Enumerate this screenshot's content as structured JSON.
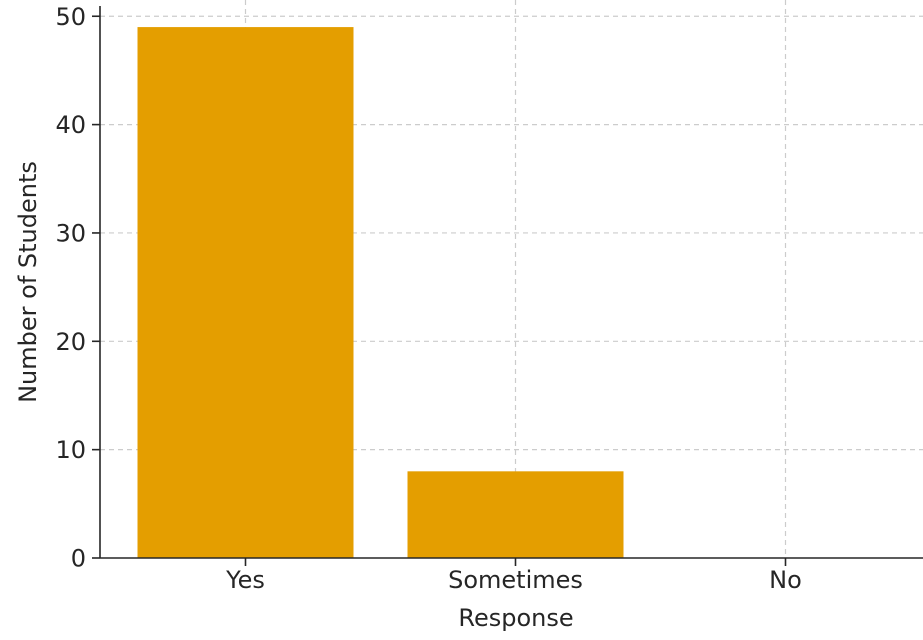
{
  "chart_data": {
    "type": "bar",
    "categories": [
      "Yes",
      "Sometimes",
      "No"
    ],
    "values": [
      49,
      8,
      0
    ],
    "xlabel": "Response",
    "ylabel": "Number of Students",
    "ylim": [
      0,
      51.5
    ],
    "yticks": [
      "0",
      "10",
      "20",
      "30",
      "40",
      "50"
    ],
    "grid": true,
    "bar_color": "#e49e00",
    "grid_color": "#cccccc",
    "axis_color": "#262626"
  }
}
